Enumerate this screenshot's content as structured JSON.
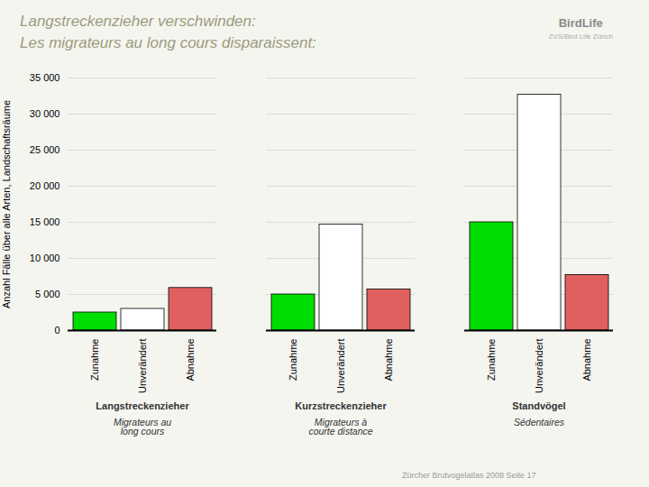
{
  "chart_data": {
    "type": "bar",
    "title": "Langstreckenzieher verschwinden:",
    "subtitle": "Les migrateurs au long cours disparaissent:",
    "ylabel": "Anzahl Fälle über alle Arten, Landschaftsräume",
    "categories": [
      "Langstreckenzieher",
      "Kurzstreckenzieher",
      "Standvögel"
    ],
    "series": [
      {
        "name": "Zunahme",
        "color": "#00dd00",
        "values": [
          2500,
          5000,
          15000
        ]
      },
      {
        "name": "Unverändert",
        "color": "#ffffff",
        "values": [
          3000,
          14700,
          32700
        ]
      },
      {
        "name": "Abnahme",
        "color": "#e06060",
        "values": [
          5900,
          5700,
          7700
        ]
      }
    ],
    "ylim": [
      0,
      35000
    ],
    "yticks": [
      0,
      {
        "value": 5000,
        "label": "5 000"
      },
      {
        "value": 10000,
        "label": "10 000"
      },
      {
        "value": 15000,
        "label": "15 000"
      },
      {
        "value": 20000,
        "label": "20 000"
      },
      {
        "value": 25000,
        "label": "25 000"
      },
      {
        "value": 30000,
        "label": "30 000"
      },
      {
        "value": 35000,
        "label": "35 000"
      }
    ],
    "grid": true,
    "legend": false,
    "annotations": [
      {
        "text": "Migrateurs au\nlong cours",
        "category": "Langstreckenzieher"
      },
      {
        "text": "Migrateurs à\ncourte distance",
        "category": "Kurzstreckenzieher"
      },
      {
        "text": "Sédentaires",
        "category": "Standvögel"
      },
      {
        "text": "BirdLife"
      },
      {
        "text": "ZVS/Bird Life Zürich"
      }
    ],
    "caption": "Zürcher Brutvogelatlas 2008  Seite 17"
  }
}
